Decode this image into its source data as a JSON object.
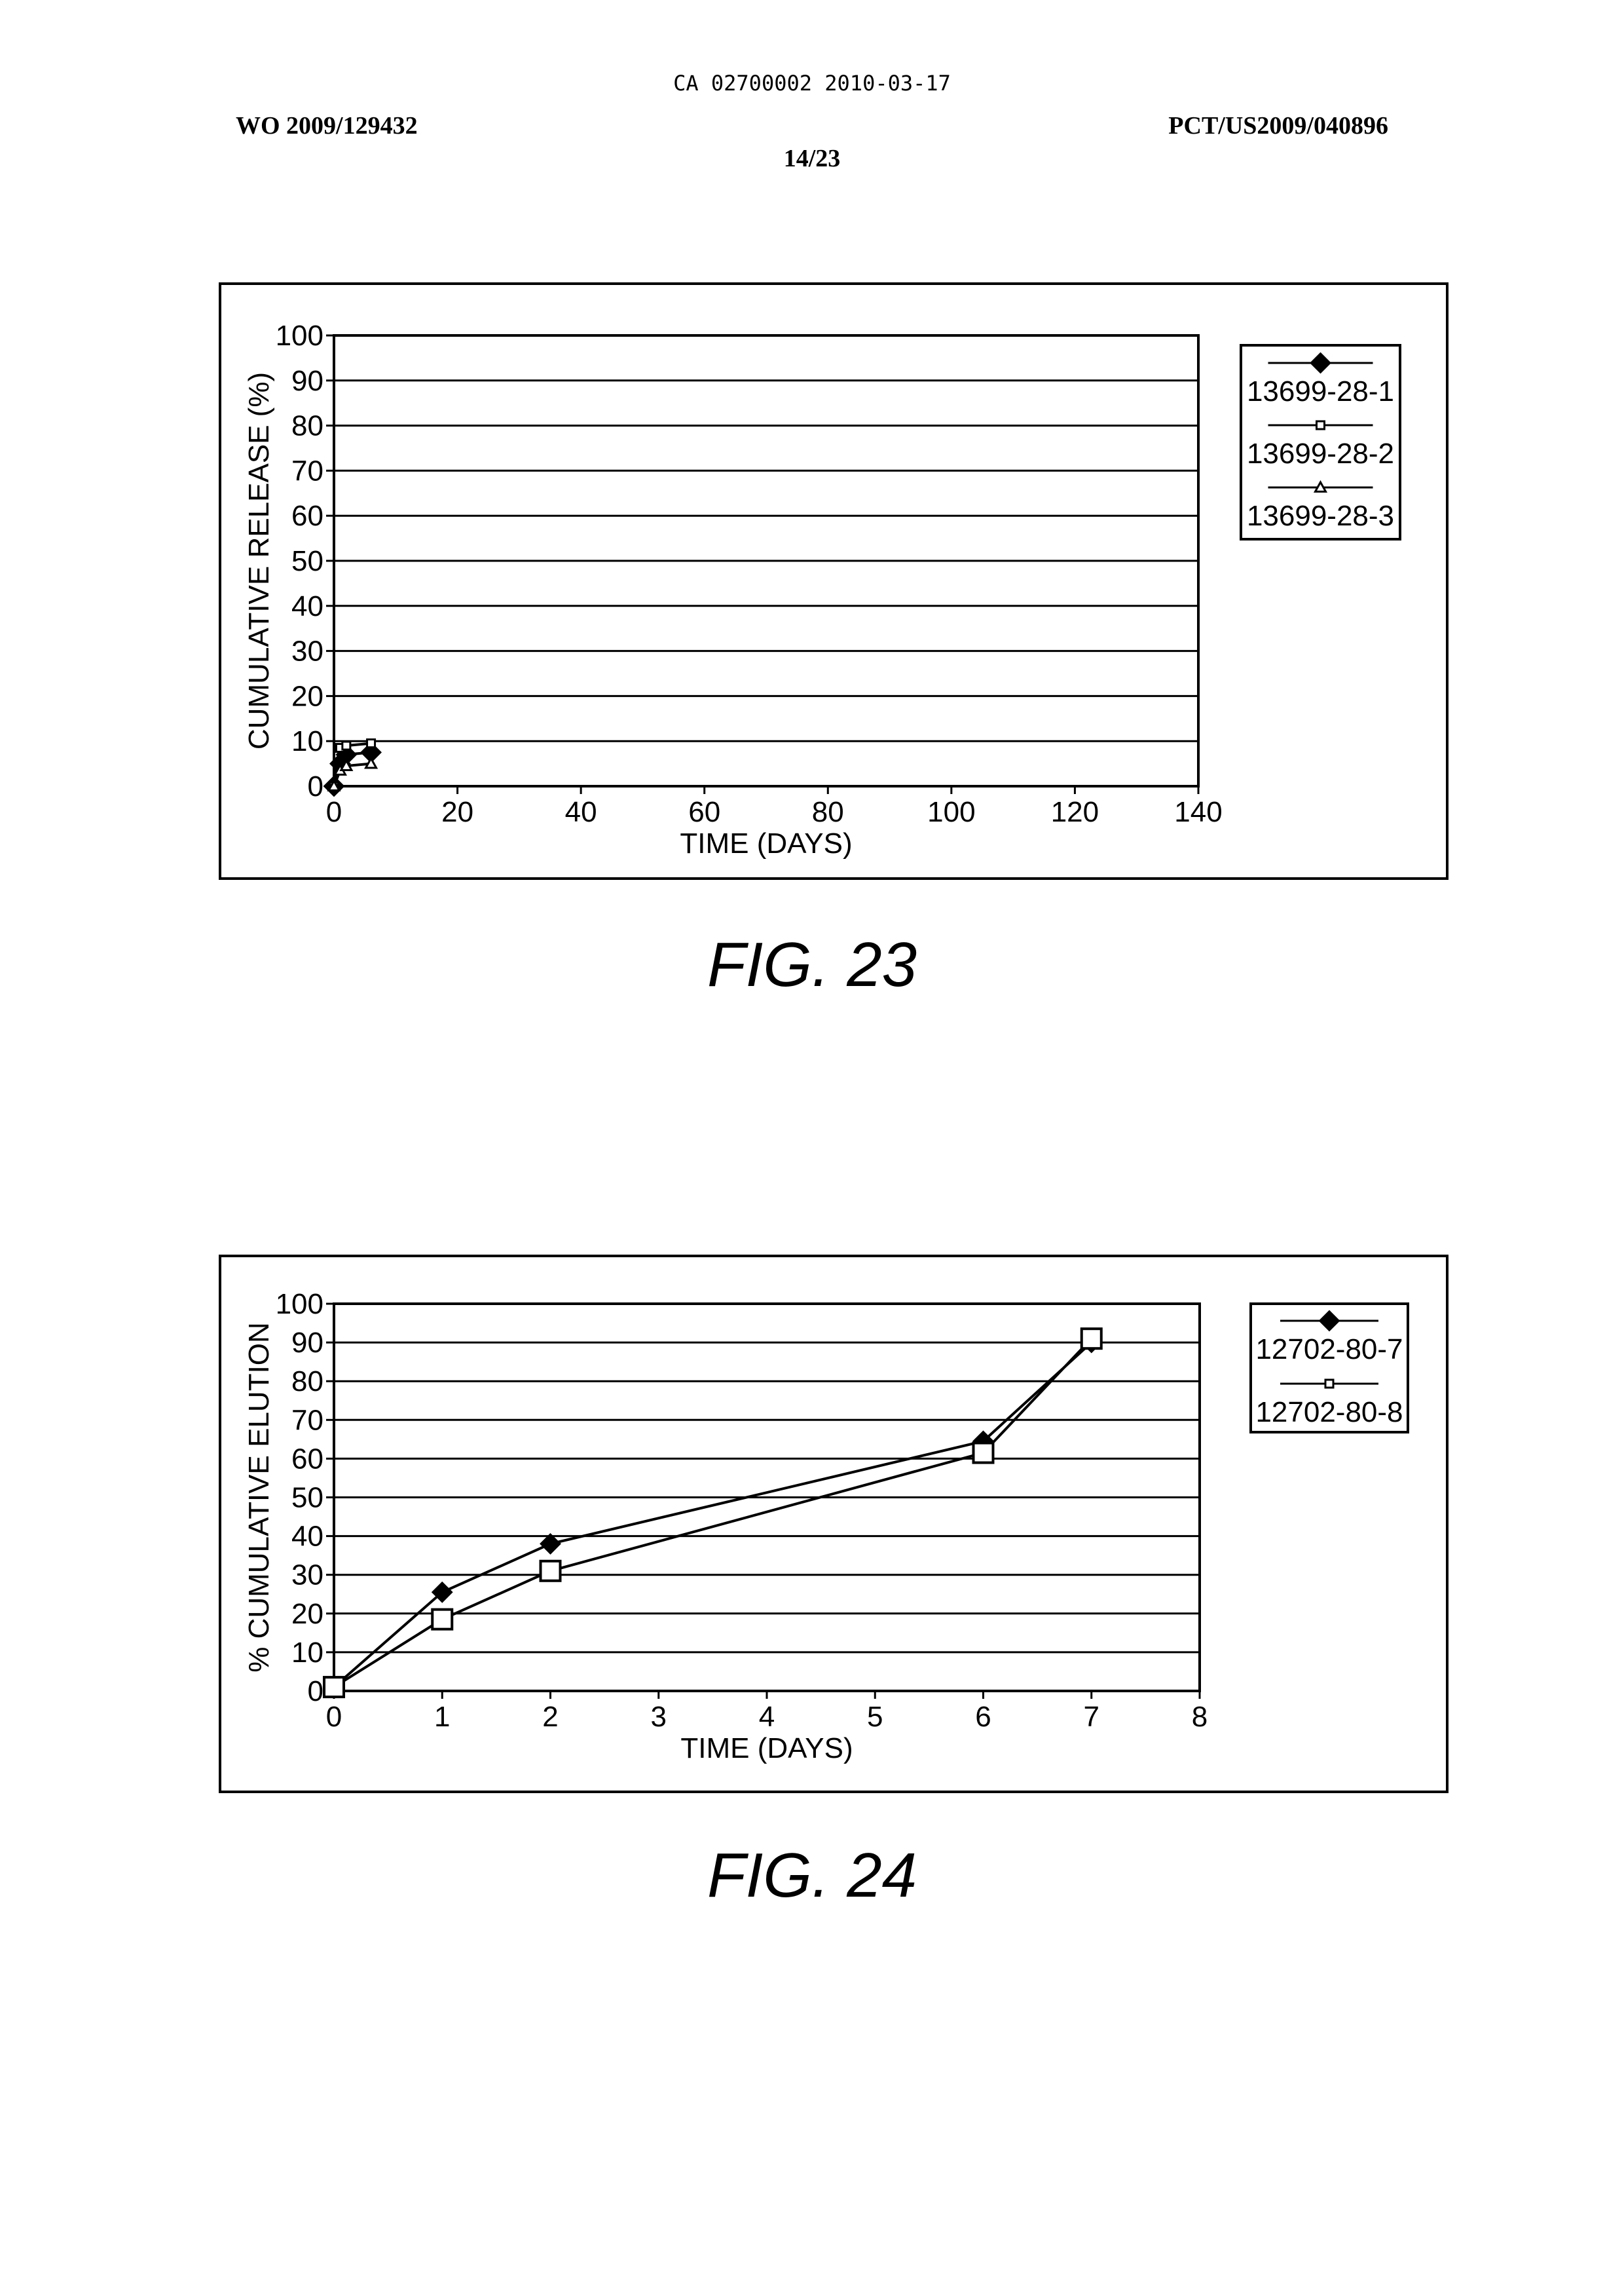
{
  "header": {
    "ca_number": "CA 02700002 2010-03-17",
    "wo_number": "WO 2009/129432",
    "pct_number": "PCT/US2009/040896",
    "page": "14/23"
  },
  "chart_data": [
    {
      "type": "line",
      "title": "",
      "caption": "FIG. 23",
      "xlabel": "TIME (DAYS)",
      "ylabel": "CUMULATIVE RELEASE (%)",
      "xlim": [
        0,
        140
      ],
      "ylim": [
        0,
        100
      ],
      "xticks": [
        "0",
        "20",
        "40",
        "60",
        "80",
        "100",
        "120",
        "140"
      ],
      "yticks": [
        "0",
        "10",
        "20",
        "30",
        "40",
        "50",
        "60",
        "70",
        "80",
        "90",
        "100"
      ],
      "grid": "horizontal",
      "legend": "right",
      "series": [
        {
          "name": "13699-28-1",
          "marker": "diamond-filled",
          "x": [
            0,
            1,
            2,
            6
          ],
          "y": [
            0,
            5,
            7,
            7.5
          ]
        },
        {
          "name": "13699-28-2",
          "marker": "square-open",
          "x": [
            0,
            1,
            2,
            6
          ],
          "y": [
            0,
            8.5,
            9,
            9.5
          ]
        },
        {
          "name": "13699-28-3",
          "marker": "triangle-open",
          "x": [
            0,
            1,
            2,
            6
          ],
          "y": [
            0,
            3.5,
            4.5,
            5
          ]
        }
      ]
    },
    {
      "type": "line",
      "title": "",
      "caption": "FIG. 24",
      "xlabel": "TIME (DAYS)",
      "ylabel": "% CUMULATIVE ELUTION",
      "xlim": [
        0,
        8
      ],
      "ylim": [
        0,
        100
      ],
      "xticks": [
        "0",
        "1",
        "2",
        "3",
        "4",
        "5",
        "6",
        "7",
        "8"
      ],
      "yticks": [
        "0",
        "10",
        "20",
        "30",
        "40",
        "50",
        "60",
        "70",
        "80",
        "90",
        "100"
      ],
      "grid": "horizontal",
      "legend": "right",
      "series": [
        {
          "name": "12702-80-7",
          "marker": "diamond-filled",
          "x": [
            0,
            1,
            2,
            6,
            7
          ],
          "y": [
            1,
            25.5,
            38,
            64.5,
            90
          ]
        },
        {
          "name": "12702-80-8",
          "marker": "square-open-large",
          "x": [
            0,
            1,
            2,
            6,
            7
          ],
          "y": [
            1,
            18.5,
            31,
            61.5,
            91
          ]
        }
      ]
    }
  ]
}
